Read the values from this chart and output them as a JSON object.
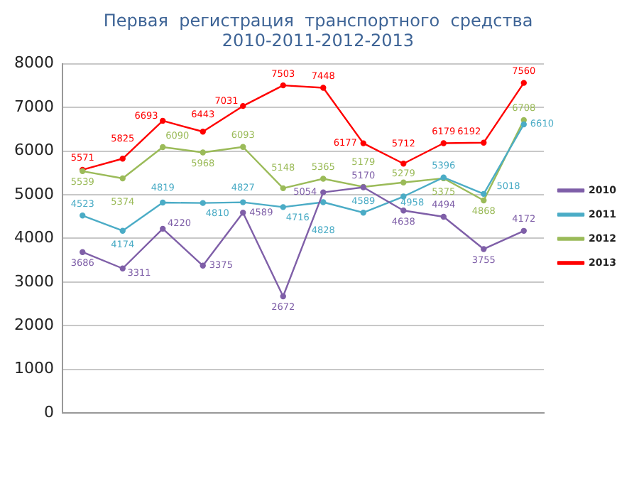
{
  "chart_data": {
    "type": "line",
    "title": [
      "Первая  регистрация  транспортного  средства",
      "2010-2011-2012-2013"
    ],
    "categories": [
      null,
      null,
      null,
      null,
      null,
      null,
      null,
      null,
      null,
      null,
      null,
      null
    ],
    "series": [
      {
        "name": "2010",
        "color": "#7f5fa8",
        "values": [
          3686,
          3311,
          4220,
          3375,
          4589,
          2672,
          5054,
          5170,
          4638,
          4494,
          3755,
          4172
        ]
      },
      {
        "name": "2011",
        "color": "#4bacc6",
        "values": [
          4523,
          4174,
          4819,
          4810,
          4827,
          4716,
          4828,
          4589,
          4958,
          5396,
          5018,
          6610
        ]
      },
      {
        "name": "2012",
        "color": "#9bbb59",
        "values": [
          5539,
          5374,
          6090,
          5968,
          6093,
          5148,
          5365,
          5179,
          5279,
          5375,
          4868,
          6708
        ]
      },
      {
        "name": "2013",
        "color": "#ff0000",
        "values": [
          5571,
          5825,
          6693,
          6443,
          7031,
          7503,
          7448,
          6177,
          5712,
          6179,
          6192,
          7560
        ]
      }
    ],
    "ylim": [
      0,
      8000
    ],
    "yticks": [
      0,
      1000,
      2000,
      3000,
      4000,
      5000,
      6000,
      7000,
      8000
    ],
    "grid": "y",
    "legend": "right",
    "marker": "circle",
    "line_style": "solid",
    "data_labels": true
  }
}
